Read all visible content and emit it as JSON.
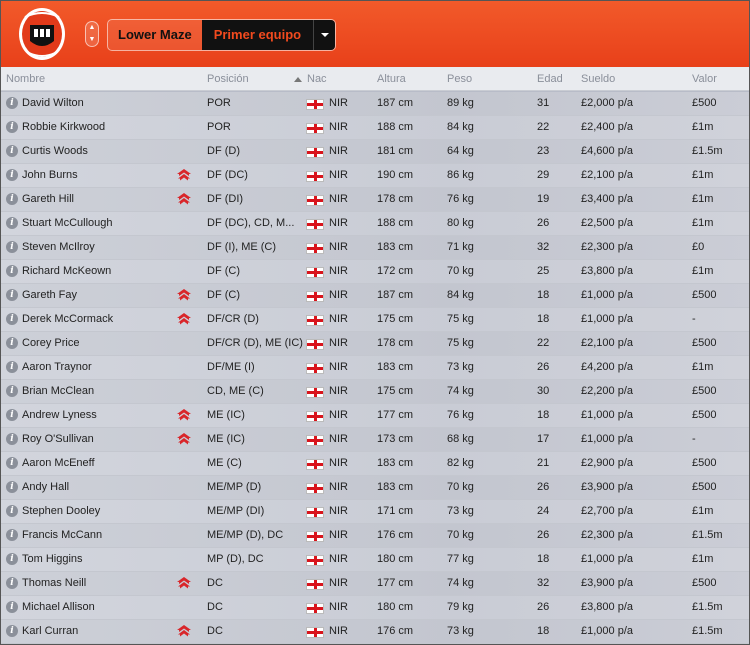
{
  "club": {
    "name": "Lower Maze",
    "team": "Primer equipo"
  },
  "colors": {
    "accent": "#f24a1e",
    "dark": "#111111",
    "home_icon": "#d9262a"
  },
  "columns": [
    "Nombre",
    "Posición",
    "Nac",
    "Altura",
    "Peso",
    "Edad",
    "Sueldo",
    "Valor"
  ],
  "sort": {
    "column": "Posición",
    "direction": "ascending"
  },
  "players": [
    {
      "name": "David Wilton",
      "home": false,
      "pos": "POR",
      "nat": "NIR",
      "height": "187 cm",
      "weight": "89 kg",
      "age": "31",
      "wage": "£2,000 p/a",
      "value": "£500"
    },
    {
      "name": "Robbie Kirkwood",
      "home": false,
      "pos": "POR",
      "nat": "NIR",
      "height": "188 cm",
      "weight": "84 kg",
      "age": "22",
      "wage": "£2,400 p/a",
      "value": "£1m"
    },
    {
      "name": "Curtis Woods",
      "home": false,
      "pos": "DF (D)",
      "nat": "NIR",
      "height": "181 cm",
      "weight": "64 kg",
      "age": "23",
      "wage": "£4,600 p/a",
      "value": "£1.5m"
    },
    {
      "name": "John Burns",
      "home": true,
      "pos": "DF (DC)",
      "nat": "NIR",
      "height": "190 cm",
      "weight": "86 kg",
      "age": "29",
      "wage": "£2,100 p/a",
      "value": "£1m"
    },
    {
      "name": "Gareth Hill",
      "home": true,
      "pos": "DF (DI)",
      "nat": "NIR",
      "height": "178 cm",
      "weight": "76 kg",
      "age": "19",
      "wage": "£3,400 p/a",
      "value": "£1m"
    },
    {
      "name": "Stuart McCullough",
      "home": false,
      "pos": "DF (DC), CD, M...",
      "nat": "NIR",
      "height": "188 cm",
      "weight": "80 kg",
      "age": "26",
      "wage": "£2,500 p/a",
      "value": "£1m"
    },
    {
      "name": "Steven McIlroy",
      "home": false,
      "pos": "DF (I), ME (C)",
      "nat": "NIR",
      "height": "183 cm",
      "weight": "71 kg",
      "age": "32",
      "wage": "£2,300 p/a",
      "value": "£0"
    },
    {
      "name": "Richard McKeown",
      "home": false,
      "pos": "DF (C)",
      "nat": "NIR",
      "height": "172 cm",
      "weight": "70 kg",
      "age": "25",
      "wage": "£3,800 p/a",
      "value": "£1m"
    },
    {
      "name": "Gareth Fay",
      "home": true,
      "pos": "DF (C)",
      "nat": "NIR",
      "height": "187 cm",
      "weight": "84 kg",
      "age": "18",
      "wage": "£1,000 p/a",
      "value": "£500"
    },
    {
      "name": "Derek McCormack",
      "home": true,
      "pos": "DF/CR (D)",
      "nat": "NIR",
      "height": "175 cm",
      "weight": "75 kg",
      "age": "18",
      "wage": "£1,000 p/a",
      "value": "-"
    },
    {
      "name": "Corey Price",
      "home": false,
      "pos": "DF/CR (D), ME (IC)",
      "nat": "NIR",
      "height": "178 cm",
      "weight": "75 kg",
      "age": "22",
      "wage": "£2,100 p/a",
      "value": "£500"
    },
    {
      "name": "Aaron Traynor",
      "home": false,
      "pos": "DF/ME (I)",
      "nat": "NIR",
      "height": "183 cm",
      "weight": "73 kg",
      "age": "26",
      "wage": "£4,200 p/a",
      "value": "£1m"
    },
    {
      "name": "Brian McClean",
      "home": false,
      "pos": "CD, ME (C)",
      "nat": "NIR",
      "height": "175 cm",
      "weight": "74 kg",
      "age": "30",
      "wage": "£2,200 p/a",
      "value": "£500"
    },
    {
      "name": "Andrew Lyness",
      "home": true,
      "pos": "ME (IC)",
      "nat": "NIR",
      "height": "177 cm",
      "weight": "76 kg",
      "age": "18",
      "wage": "£1,000 p/a",
      "value": "£500"
    },
    {
      "name": "Roy O'Sullivan",
      "home": true,
      "pos": "ME (IC)",
      "nat": "NIR",
      "height": "173 cm",
      "weight": "68 kg",
      "age": "17",
      "wage": "£1,000 p/a",
      "value": "-"
    },
    {
      "name": "Aaron McEneff",
      "home": false,
      "pos": "ME (C)",
      "nat": "NIR",
      "height": "183 cm",
      "weight": "82 kg",
      "age": "21",
      "wage": "£2,900 p/a",
      "value": "£500"
    },
    {
      "name": "Andy Hall",
      "home": false,
      "pos": "ME/MP (D)",
      "nat": "NIR",
      "height": "183 cm",
      "weight": "70 kg",
      "age": "26",
      "wage": "£3,900 p/a",
      "value": "£500"
    },
    {
      "name": "Stephen Dooley",
      "home": false,
      "pos": "ME/MP (DI)",
      "nat": "NIR",
      "height": "171 cm",
      "weight": "73 kg",
      "age": "24",
      "wage": "£2,700 p/a",
      "value": "£1m"
    },
    {
      "name": "Francis McCann",
      "home": false,
      "pos": "ME/MP (D), DC",
      "nat": "NIR",
      "height": "176 cm",
      "weight": "70 kg",
      "age": "26",
      "wage": "£2,300 p/a",
      "value": "£1.5m"
    },
    {
      "name": "Tom Higgins",
      "home": false,
      "pos": "MP (D), DC",
      "nat": "NIR",
      "height": "180 cm",
      "weight": "77 kg",
      "age": "18",
      "wage": "£1,000 p/a",
      "value": "£1m"
    },
    {
      "name": "Thomas Neill",
      "home": true,
      "pos": "DC",
      "nat": "NIR",
      "height": "177 cm",
      "weight": "74 kg",
      "age": "32",
      "wage": "£3,900 p/a",
      "value": "£500"
    },
    {
      "name": "Michael Allison",
      "home": false,
      "pos": "DC",
      "nat": "NIR",
      "height": "180 cm",
      "weight": "79 kg",
      "age": "26",
      "wage": "£3,800 p/a",
      "value": "£1.5m"
    },
    {
      "name": "Karl Curran",
      "home": true,
      "pos": "DC",
      "nat": "NIR",
      "height": "176 cm",
      "weight": "73 kg",
      "age": "18",
      "wage": "£1,000 p/a",
      "value": "£1.5m"
    }
  ]
}
